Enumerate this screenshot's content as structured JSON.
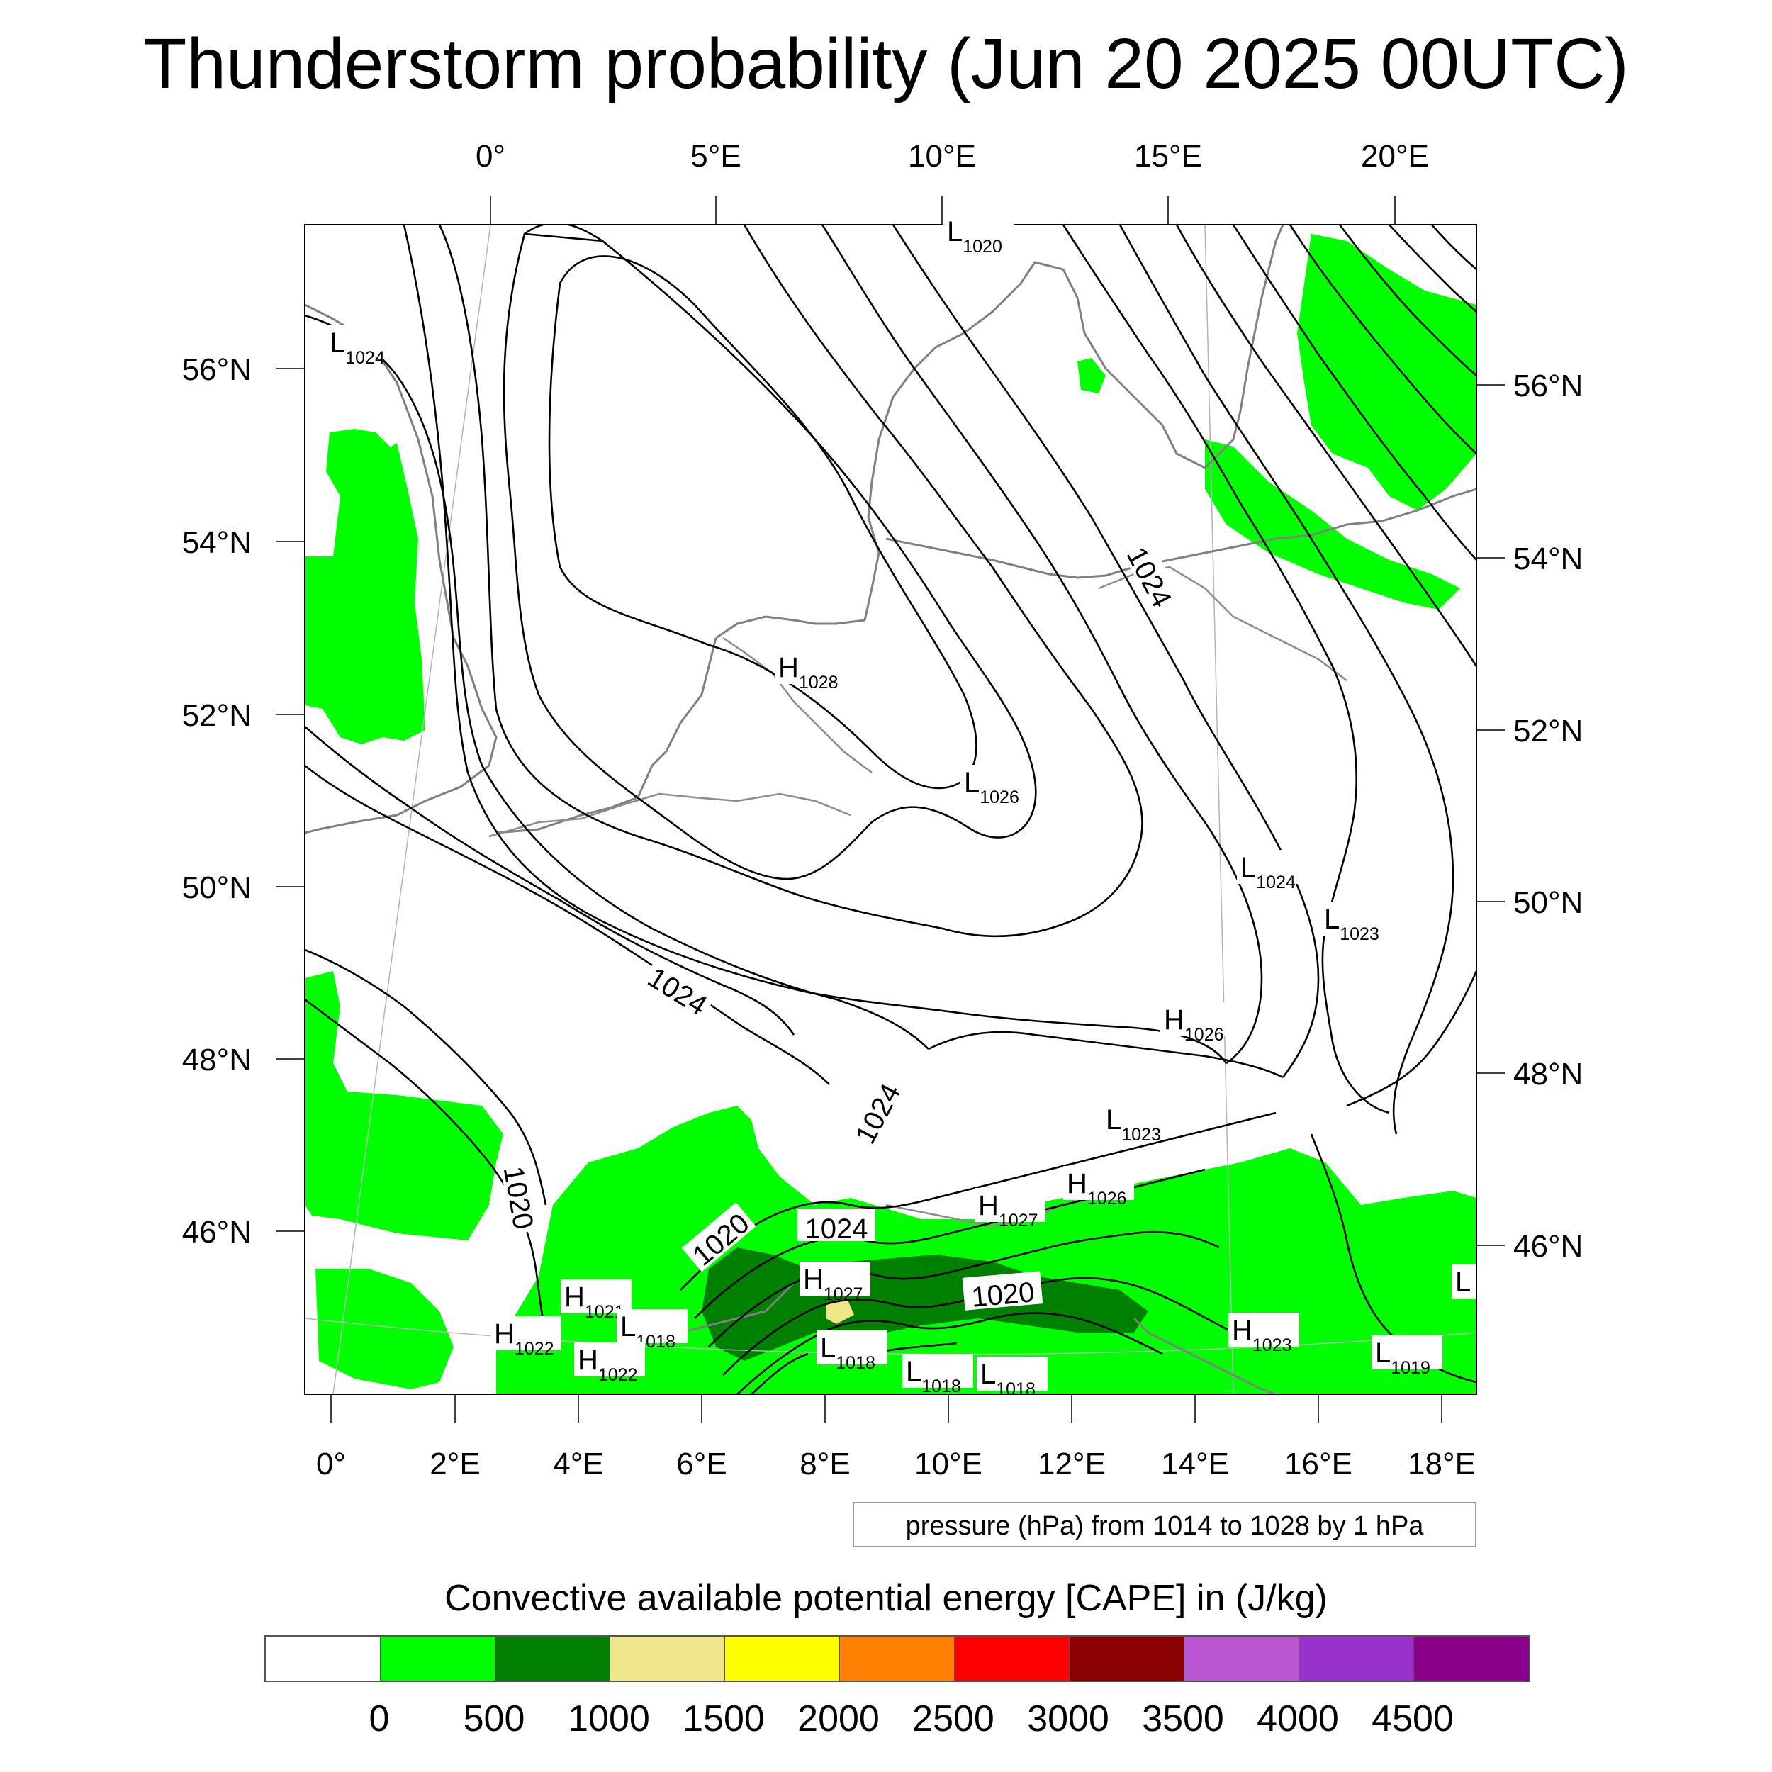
{
  "title": "Thunderstorm probability (Jun 20 2025 00UTC)",
  "top_lon_labels": [
    "0°",
    "5°E",
    "10°E",
    "15°E",
    "20°E"
  ],
  "bottom_lon_labels": [
    "0°",
    "2°E",
    "4°E",
    "6°E",
    "8°E",
    "10°E",
    "12°E",
    "14°E",
    "16°E",
    "18°E"
  ],
  "left_lat_labels": [
    "56°N",
    "54°N",
    "52°N",
    "50°N",
    "48°N",
    "46°N"
  ],
  "right_lat_labels": [
    "56°N",
    "54°N",
    "52°N",
    "50°N",
    "48°N",
    "46°N"
  ],
  "pressure_centers": [
    {
      "type": "L",
      "value": "1024"
    },
    {
      "type": "L",
      "value": "1020"
    },
    {
      "type": "H",
      "value": "1028"
    },
    {
      "type": "L",
      "value": "1026"
    },
    {
      "type": "L",
      "value": "1024"
    },
    {
      "type": "L",
      "value": "1023"
    },
    {
      "type": "H",
      "value": "1026"
    },
    {
      "type": "L",
      "value": "1023"
    },
    {
      "type": "H",
      "value": "1026"
    },
    {
      "type": "H",
      "value": "1027"
    },
    {
      "type": "H",
      "value": "1027"
    },
    {
      "type": "H",
      "value": "1021"
    },
    {
      "type": "H",
      "value": "1022"
    },
    {
      "type": "L",
      "value": "1018"
    },
    {
      "type": "H",
      "value": "1022"
    },
    {
      "type": "L",
      "value": "1018"
    },
    {
      "type": "L",
      "value": "1018"
    },
    {
      "type": "L",
      "value": "1018"
    },
    {
      "type": "H",
      "value": "1023"
    },
    {
      "type": "L",
      "value": "1019"
    },
    {
      "type": "L",
      "value": ""
    }
  ],
  "contour_labels": [
    "1024",
    "1024",
    "1024",
    "1020",
    "1020",
    "1024",
    "1020"
  ],
  "pressure_note": "pressure (hPa) from 1014 to 1028 by 1 hPa",
  "colorbar": {
    "title": "Convective available potential energy [CAPE] in (J/kg)",
    "colors": [
      "#ffffff",
      "#00ff00",
      "#008000",
      "#f0e68c",
      "#ffff00",
      "#ff8000",
      "#ff0000",
      "#8b0000",
      "#ba55d3",
      "#9932cc",
      "#8b008b"
    ],
    "ticks": [
      "0",
      "500",
      "1000",
      "1500",
      "2000",
      "2500",
      "3000",
      "3500",
      "4000",
      "4500"
    ]
  }
}
